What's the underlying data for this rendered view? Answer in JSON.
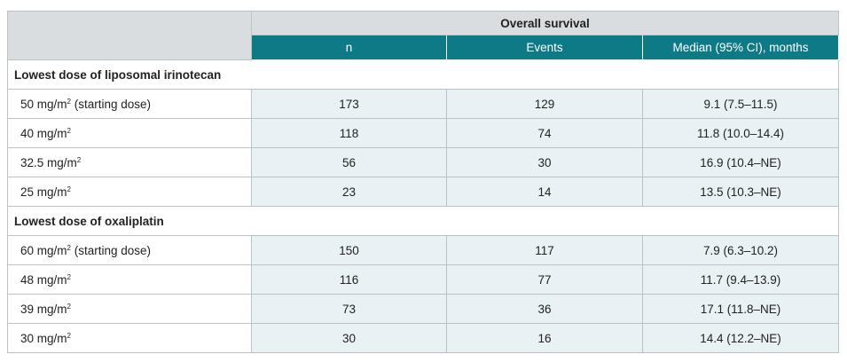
{
  "table": {
    "group_header": "Overall survival",
    "columns": [
      "n",
      "Events",
      "Median (95% CI), months"
    ],
    "sections": [
      {
        "title": "Lowest dose of liposomal irinotecan",
        "rows": [
          {
            "dose": "50 mg/m",
            "sup": "2",
            "note": " (starting dose)",
            "n": "173",
            "events": "129",
            "median": "9.1 (7.5–11.5)"
          },
          {
            "dose": "40 mg/m",
            "sup": "2",
            "note": "",
            "n": "118",
            "events": "74",
            "median": "11.8 (10.0–14.4)"
          },
          {
            "dose": "32.5 mg/m",
            "sup": "2",
            "note": "",
            "n": "56",
            "events": "30",
            "median": "16.9 (10.4–NE)"
          },
          {
            "dose": "25 mg/m",
            "sup": "2",
            "note": "",
            "n": "23",
            "events": "14",
            "median": "13.5 (10.3–NE)"
          }
        ]
      },
      {
        "title": "Lowest dose of oxaliplatin",
        "rows": [
          {
            "dose": "60 mg/m",
            "sup": "2",
            "note": " (starting dose)",
            "n": "150",
            "events": "117",
            "median": "7.9 (6.3–10.2)"
          },
          {
            "dose": "48 mg/m",
            "sup": "2",
            "note": "",
            "n": "116",
            "events": "77",
            "median": "11.7 (9.4–13.9)"
          },
          {
            "dose": "39 mg/m",
            "sup": "2",
            "note": "",
            "n": "73",
            "events": "36",
            "median": "17.1 (11.8–NE)"
          },
          {
            "dose": "30 mg/m",
            "sup": "2",
            "note": "",
            "n": "30",
            "events": "16",
            "median": "14.4 (12.2–NE)"
          }
        ]
      }
    ]
  }
}
